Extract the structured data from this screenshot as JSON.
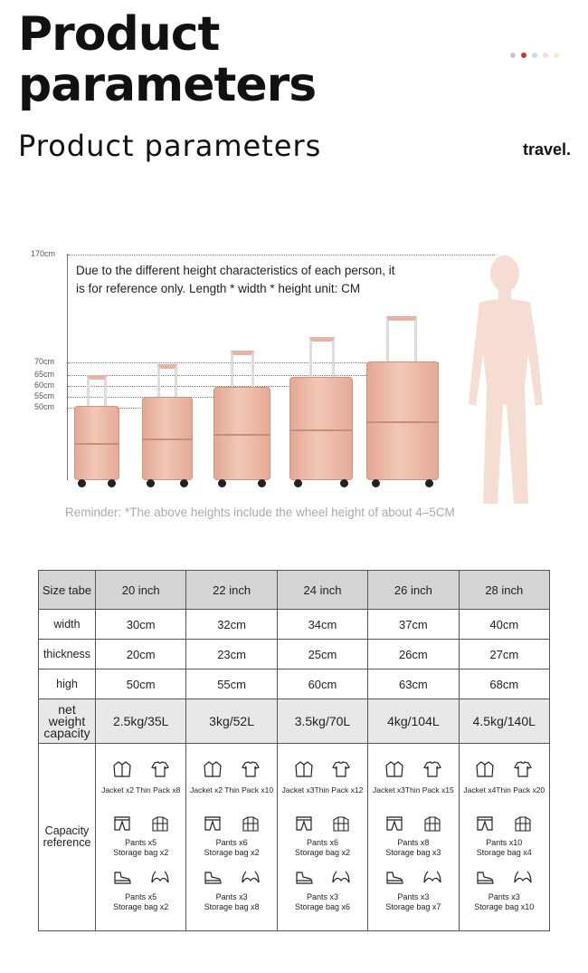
{
  "header": {
    "title_line1": "Product",
    "title_line2": "parameters",
    "subtitle": "Product  parameters",
    "brand": "travel.",
    "indicator_dots": [
      "#c9c9c9",
      "#d9302a",
      "#c7dcdc",
      "#f1dcd8",
      "#f7e8d8"
    ]
  },
  "chart": {
    "scale_labels": [
      "170cm",
      "70cm",
      "65cm",
      "60cm",
      "55cm",
      "50cm"
    ],
    "note": "Due to the different height characteristics of each person, it is for reference only. Length * width * height unit: CM",
    "reminder": "Reminder: *The above heights include the wheel height of about 4–5CM",
    "suitcase_color": "#efbca9",
    "figure_color": "#f6ddd3"
  },
  "table": {
    "header": [
      "Size tabe",
      "20 inch",
      "22 inch",
      "24 inch",
      "26 inch",
      "28 inch"
    ],
    "rows": [
      {
        "label": "width",
        "values": [
          "30cm",
          "32cm",
          "34cm",
          "37cm",
          "40cm"
        ]
      },
      {
        "label": "thickness",
        "values": [
          "20cm",
          "23cm",
          "25cm",
          "26cm",
          "27cm"
        ]
      },
      {
        "label": "high",
        "values": [
          "50cm",
          "55cm",
          "60cm",
          "63cm",
          "68cm"
        ]
      }
    ],
    "weight": {
      "label_line1": "net weight",
      "label_line2": "capacity",
      "values": [
        "2.5kg/35L",
        "3kg/52L",
        "3.5kg/70L",
        "4kg/104L",
        "4.5kg/140L"
      ]
    },
    "capacity": {
      "label_line1": "Capacity",
      "label_line2": "reference",
      "columns": [
        {
          "pack1": "Jacket x2  Thin Pack x8",
          "pack2_a": "Pants x5",
          "pack2_b": "Storage bag x2",
          "pack3_a": "Pants x5",
          "pack3_b": "Storage bag x2"
        },
        {
          "pack1": "Jacket x2  Thin Pack x10",
          "pack2_a": "Pants x6",
          "pack2_b": "Storage bag x2",
          "pack3_a": "Pants x3",
          "pack3_b": "Storage bag x8"
        },
        {
          "pack1": "Jacket x3Thin Pack x12",
          "pack2_a": "Pants x6",
          "pack2_b": "Storage bag x2",
          "pack3_a": "Pants x3",
          "pack3_b": "Storage bag x6"
        },
        {
          "pack1": "Jacket x3Thin Pack x15",
          "pack2_a": "Pants x8",
          "pack2_b": "Storage bag x3",
          "pack3_a": "Pants x3",
          "pack3_b": "Storage bag x7"
        },
        {
          "pack1": "Jacket x4Thin Pack x20",
          "pack2_a": "Pants x10",
          "pack2_b": "Storage bag x4",
          "pack3_a": "Pants x3",
          "pack3_b": "Storage bag x10"
        }
      ]
    }
  }
}
